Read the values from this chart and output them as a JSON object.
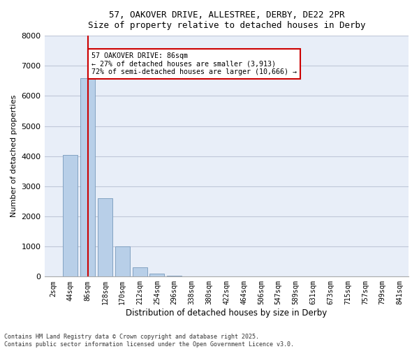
{
  "title_line1": "57, OAKOVER DRIVE, ALLESTREE, DERBY, DE22 2PR",
  "title_line2": "Size of property relative to detached houses in Derby",
  "xlabel": "Distribution of detached houses by size in Derby",
  "ylabel": "Number of detached properties",
  "background_color": "#e8eef8",
  "bar_color": "#b8cfe8",
  "bar_edge_color": "#7799bb",
  "annotation_box_color": "#cc0000",
  "property_line_color": "#cc0000",
  "categories": [
    "2sqm",
    "44sqm",
    "86sqm",
    "128sqm",
    "170sqm",
    "212sqm",
    "254sqm",
    "296sqm",
    "338sqm",
    "380sqm",
    "422sqm",
    "464sqm",
    "506sqm",
    "547sqm",
    "589sqm",
    "631sqm",
    "673sqm",
    "715sqm",
    "757sqm",
    "799sqm",
    "841sqm"
  ],
  "values": [
    0,
    4050,
    6600,
    2600,
    1000,
    320,
    90,
    25,
    10,
    5,
    3,
    2,
    1,
    1,
    0,
    0,
    0,
    0,
    0,
    0,
    0
  ],
  "ylim": [
    0,
    8000
  ],
  "yticks": [
    0,
    1000,
    2000,
    3000,
    4000,
    5000,
    6000,
    7000,
    8000
  ],
  "property_bar_index": 2,
  "annotation_text": "57 OAKOVER DRIVE: 86sqm\n← 27% of detached houses are smaller (3,913)\n72% of semi-detached houses are larger (10,666) →",
  "footer_line1": "Contains HM Land Registry data © Crown copyright and database right 2025.",
  "footer_line2": "Contains public sector information licensed under the Open Government Licence v3.0.",
  "grid_color": "#c0c8d8",
  "figsize": [
    6.0,
    5.0
  ],
  "dpi": 100
}
